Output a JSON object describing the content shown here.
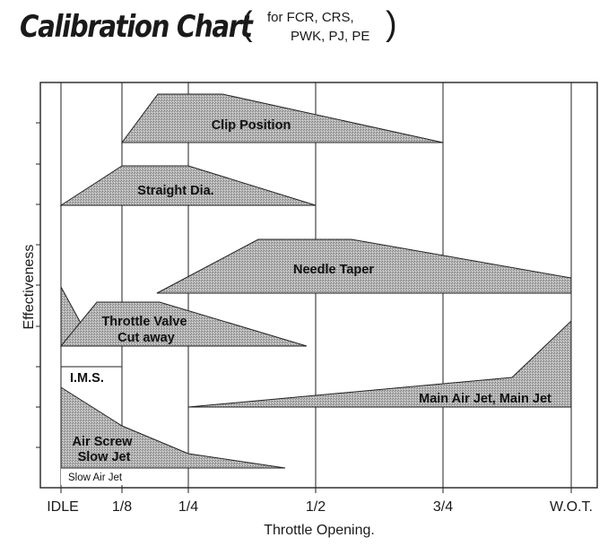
{
  "header": {
    "title": "Calibration Chart",
    "paren_open": "(",
    "paren_close": ")",
    "subtitle_line1": "for FCR, CRS,",
    "subtitle_line2": "PWK, PJ, PE"
  },
  "chart": {
    "xlabel": "Throttle Opening.",
    "ylabel": "Effectiveness",
    "x_ticks": [
      "IDLE",
      "1/8",
      "1/4",
      "1/2",
      "3/4",
      "W.O.T."
    ],
    "components": [
      {
        "name": "Clip Position",
        "label_lines": [
          "Clip Position"
        ]
      },
      {
        "name": "Straight Dia.",
        "label_lines": [
          "Straight Dia."
        ]
      },
      {
        "name": "Needle Taper",
        "label_lines": [
          "Needle Taper"
        ]
      },
      {
        "name": "Throttle Valve Cut away",
        "label_lines": [
          "Throttle Valve",
          "Cut away"
        ]
      },
      {
        "name": "I.M.S.",
        "label_lines": [
          "I.M.S."
        ]
      },
      {
        "name": "Main Air Jet, Main Jet",
        "label_lines": [
          "Main Air Jet, Main Jet"
        ]
      },
      {
        "name": "Air Screw Slow Jet",
        "label_lines": [
          "Air Screw",
          "Slow Jet"
        ]
      },
      {
        "name": "Slow Air Jet",
        "label_lines": [
          "Slow Air Jet"
        ]
      }
    ]
  }
}
